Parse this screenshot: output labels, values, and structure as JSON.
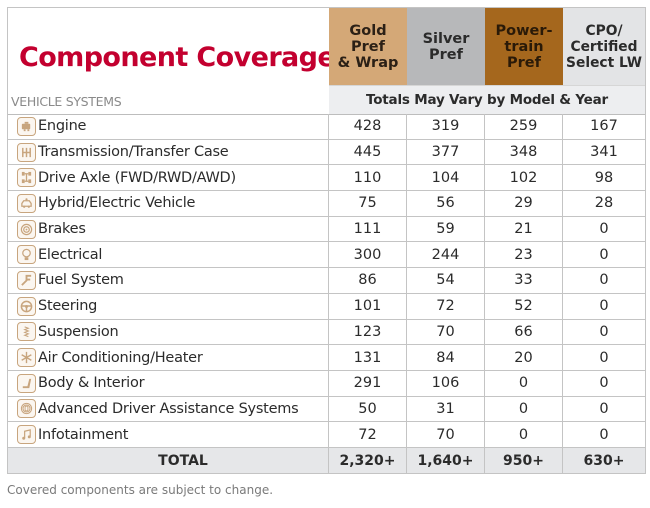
{
  "title": "Component Coverage",
  "section_label": "VEHICLE SYSTEMS",
  "plans": [
    {
      "label_lines": [
        "Gold",
        "Pref",
        "& Wrap"
      ],
      "color": "#d4a877"
    },
    {
      "label_lines": [
        "Silver",
        "Pref"
      ],
      "color": "#b7b8ba"
    },
    {
      "label_lines": [
        "Power-",
        "train",
        "Pref"
      ],
      "color": "#a5671d"
    },
    {
      "label_lines": [
        "CPO/",
        "Certified",
        "Select LW"
      ],
      "color": "#e3e4e6"
    }
  ],
  "totals_note": "Totals May Vary by Model & Year",
  "rows": [
    {
      "icon": "engine-icon",
      "name": "Engine",
      "values": [
        "428",
        "319",
        "259",
        "167"
      ]
    },
    {
      "icon": "transmission-icon",
      "name": "Transmission/Transfer Case",
      "values": [
        "445",
        "377",
        "348",
        "341"
      ]
    },
    {
      "icon": "drive-axle-icon",
      "name": "Drive Axle (FWD/RWD/AWD)",
      "values": [
        "110",
        "104",
        "102",
        "98"
      ]
    },
    {
      "icon": "hybrid-vehicle-icon",
      "name": "Hybrid/Electric Vehicle",
      "values": [
        "75",
        "56",
        "29",
        "28"
      ]
    },
    {
      "icon": "brake-disc-icon",
      "name": "Brakes",
      "values": [
        "111",
        "59",
        "21",
        "0"
      ]
    },
    {
      "icon": "light-bulb-icon",
      "name": "Electrical",
      "values": [
        "300",
        "244",
        "23",
        "0"
      ]
    },
    {
      "icon": "fuel-pipe-icon",
      "name": "Fuel System",
      "values": [
        "86",
        "54",
        "33",
        "0"
      ]
    },
    {
      "icon": "steering-wheel-icon",
      "name": "Steering",
      "values": [
        "101",
        "72",
        "52",
        "0"
      ]
    },
    {
      "icon": "spring-icon",
      "name": "Suspension",
      "values": [
        "123",
        "70",
        "66",
        "0"
      ]
    },
    {
      "icon": "snowflake-icon",
      "name": "Air Conditioning/Heater",
      "values": [
        "131",
        "84",
        "20",
        "0"
      ]
    },
    {
      "icon": "seat-icon",
      "name": "Body & Interior",
      "values": [
        "291",
        "106",
        "0",
        "0"
      ]
    },
    {
      "icon": "sensor-icon",
      "name": "Advanced Driver Assistance Systems",
      "values": [
        "50",
        "31",
        "0",
        "0"
      ]
    },
    {
      "icon": "music-note-icon",
      "name": "Infotainment",
      "values": [
        "72",
        "70",
        "0",
        "0"
      ]
    }
  ],
  "total": {
    "label": "TOTAL",
    "values": [
      "2,320+",
      "1,640+",
      "950+",
      "630+"
    ]
  },
  "footer": "Covered components are subject to change.",
  "colors": {
    "title": "#c3002f",
    "icon_accent": "#c8a57e"
  }
}
